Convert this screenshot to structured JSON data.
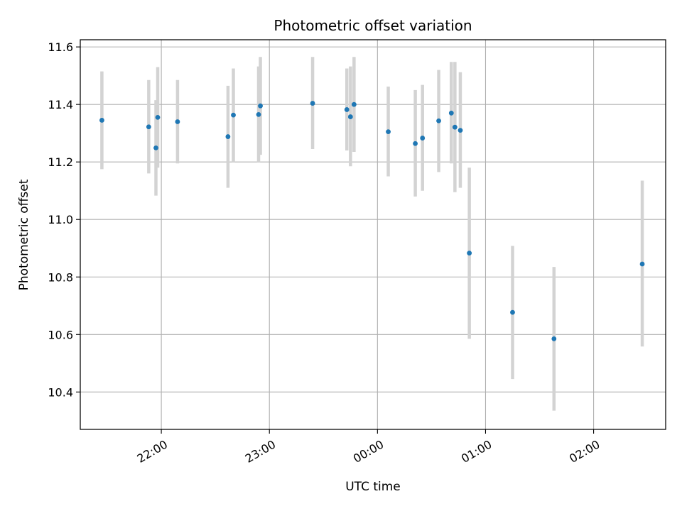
{
  "chart_data": {
    "type": "scatter",
    "title": "Photometric offset variation",
    "xlabel": "UTC time",
    "ylabel": "Photometric offset",
    "grid": true,
    "colors": {
      "marker": "#1f77b4",
      "errorbar": "#d3d3d3",
      "grid": "#b0b0b0",
      "axes": "#000000"
    },
    "x_axis": {
      "unit": "UTC time, HH:MM (times after midnight are the following day)",
      "ticks": [
        "22:00",
        "23:00",
        "00:00",
        "01:00",
        "02:00"
      ],
      "range": [
        "21:15",
        "02:40"
      ]
    },
    "y_axis": {
      "ticks": [
        "10.4",
        "10.6",
        "10.8",
        "11.0",
        "11.2",
        "11.4",
        "11.6"
      ],
      "range": [
        10.27,
        11.625
      ]
    },
    "points": [
      {
        "x": "21:27",
        "y": 11.345,
        "err_low": 11.175,
        "err_high": 11.515
      },
      {
        "x": "21:53",
        "y": 11.322,
        "err_low": 11.16,
        "err_high": 11.485
      },
      {
        "x": "21:57",
        "y": 11.249,
        "err_low": 11.083,
        "err_high": 11.415
      },
      {
        "x": "21:58",
        "y": 11.355,
        "err_low": 11.18,
        "err_high": 11.53
      },
      {
        "x": "22:09",
        "y": 11.34,
        "err_low": 11.195,
        "err_high": 11.485
      },
      {
        "x": "22:37",
        "y": 11.288,
        "err_low": 11.11,
        "err_high": 11.465
      },
      {
        "x": "22:40",
        "y": 11.363,
        "err_low": 11.2,
        "err_high": 11.525
      },
      {
        "x": "22:54",
        "y": 11.365,
        "err_low": 11.2,
        "err_high": 11.532
      },
      {
        "x": "22:55",
        "y": 11.395,
        "err_low": 11.225,
        "err_high": 11.565
      },
      {
        "x": "23:24",
        "y": 11.404,
        "err_low": 11.245,
        "err_high": 11.565
      },
      {
        "x": "23:43",
        "y": 11.382,
        "err_low": 11.24,
        "err_high": 11.525
      },
      {
        "x": "23:45",
        "y": 11.357,
        "err_low": 11.185,
        "err_high": 11.532
      },
      {
        "x": "23:47",
        "y": 11.4,
        "err_low": 11.235,
        "err_high": 11.565
      },
      {
        "x": "00:06",
        "y": 11.305,
        "err_low": 11.15,
        "err_high": 11.462
      },
      {
        "x": "00:21",
        "y": 11.264,
        "err_low": 11.08,
        "err_high": 11.45
      },
      {
        "x": "00:25",
        "y": 11.283,
        "err_low": 11.1,
        "err_high": 11.468
      },
      {
        "x": "00:34",
        "y": 11.343,
        "err_low": 11.165,
        "err_high": 11.52
      },
      {
        "x": "00:41",
        "y": 11.37,
        "err_low": 11.195,
        "err_high": 11.548
      },
      {
        "x": "00:43",
        "y": 11.321,
        "err_low": 11.095,
        "err_high": 11.548
      },
      {
        "x": "00:46",
        "y": 11.31,
        "err_low": 11.11,
        "err_high": 11.512
      },
      {
        "x": "00:51",
        "y": 10.883,
        "err_low": 10.585,
        "err_high": 11.18
      },
      {
        "x": "01:15",
        "y": 10.677,
        "err_low": 10.445,
        "err_high": 10.908
      },
      {
        "x": "01:38",
        "y": 10.585,
        "err_low": 10.335,
        "err_high": 10.835
      },
      {
        "x": "02:27",
        "y": 10.845,
        "err_low": 10.558,
        "err_high": 11.135
      }
    ]
  }
}
